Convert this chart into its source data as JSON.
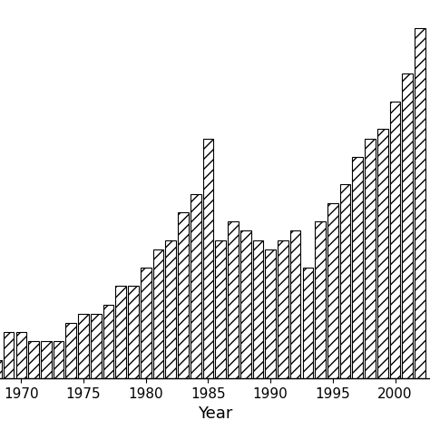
{
  "years": [
    1968,
    1969,
    1970,
    1971,
    1972,
    1973,
    1974,
    1975,
    1976,
    1977,
    1978,
    1979,
    1980,
    1981,
    1982,
    1983,
    1984,
    1985,
    1986,
    1987,
    1988,
    1989,
    1990,
    1991,
    1992,
    1993,
    1994,
    1995,
    1996,
    1997,
    1998,
    1999,
    2000,
    2001,
    2002
  ],
  "values": [
    2,
    5,
    5,
    4,
    4,
    4,
    6,
    7,
    7,
    8,
    10,
    10,
    12,
    14,
    15,
    18,
    20,
    26,
    15,
    17,
    16,
    15,
    14,
    15,
    16,
    12,
    17,
    19,
    21,
    24,
    26,
    27,
    30,
    33,
    38
  ],
  "xlabel": "Year",
  "xlim_left": 1968.3,
  "xlim_right": 2002.8,
  "ylim_bottom": 0,
  "ylim_top": 41,
  "xticks": [
    1970,
    1975,
    1980,
    1985,
    1990,
    1995,
    2000
  ],
  "bar_color": "white",
  "bar_edgecolor": "black",
  "hatch": "///",
  "background_color": "white",
  "xlabel_fontsize": 13,
  "tick_fontsize": 11,
  "bar_width": 0.85
}
